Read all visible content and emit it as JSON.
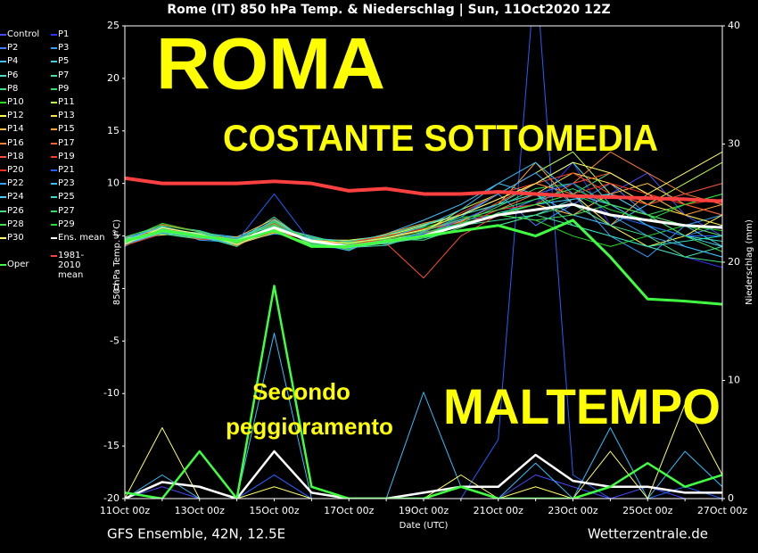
{
  "chart_data": {
    "type": "line",
    "title": "Rome  (IT)  850 hPa Temp. & Niederschlag | Sun, 11Oct2020 12Z",
    "x_label": "Date (UTC)",
    "y_label": "850 hPa Temp. (°C)",
    "y2_label": "Niederschlag (mm)",
    "source_left": "GFS Ensemble, 42N, 12.5E",
    "source_right": "Wetterzentrale.de",
    "annotations": {
      "title": "ROMA",
      "subtitle": "COSTANTE SOTTOMEDIA",
      "note": [
        "Secondo",
        "peggioramento"
      ],
      "headline": "MALTEMPO"
    },
    "x": [
      "11Oct 00z",
      null,
      "13Oct 00z",
      null,
      "15Oct 00z",
      null,
      "17Oct 00z",
      null,
      "19Oct 00z",
      null,
      "21Oct 00z",
      null,
      "23Oct 00z",
      null,
      "25Oct 00z",
      null,
      "27Oct 00z"
    ],
    "ylim": [
      -20,
      25
    ],
    "yticks": [
      -20,
      -15,
      -10,
      -5,
      0,
      5,
      10,
      15,
      20,
      25
    ],
    "y2lim": [
      0,
      40
    ],
    "y2ticks": [
      0,
      10,
      20,
      30,
      40
    ],
    "series": [
      {
        "name": "Control",
        "color": "#4848ff",
        "values": [
          4.5,
          5.8,
          5.2,
          4.3,
          6,
          4.2,
          4,
          4.8,
          5.5,
          6.5,
          8,
          9,
          7,
          9,
          11,
          7,
          5
        ],
        "precip": [
          0,
          1,
          0,
          0,
          2,
          0,
          0,
          0,
          0,
          1,
          0,
          2,
          1,
          0,
          1,
          0,
          0
        ],
        "axis": "y2"
      },
      {
        "name": "P1",
        "color": "#3030ff",
        "values": [
          4.2,
          5.5,
          4.8,
          4.6,
          5.5,
          4.6,
          4.2,
          4.6,
          5.2,
          6,
          7.5,
          8,
          12,
          6,
          4,
          3,
          2
        ]
      },
      {
        "name": "P2",
        "color": "#4080ff",
        "values": [
          4.8,
          5.3,
          5.1,
          4.2,
          6.5,
          4,
          3.8,
          5,
          6,
          7,
          9,
          6,
          8,
          10,
          7,
          5,
          6
        ]
      },
      {
        "name": "P3",
        "color": "#30a0ff",
        "values": [
          4,
          5.9,
          4.6,
          4.4,
          5.2,
          4.8,
          4.5,
          4.2,
          5,
          6.5,
          7,
          8.5,
          9,
          5,
          3,
          6,
          7
        ]
      },
      {
        "name": "P4",
        "color": "#40c0ff",
        "values": [
          4.6,
          5.1,
          5.3,
          4.9,
          6.2,
          4.4,
          3.6,
          5.2,
          6.5,
          8,
          10,
          9,
          7,
          6,
          8,
          9,
          10
        ]
      },
      {
        "name": "P5",
        "color": "#40d0e0",
        "values": [
          4.3,
          5.7,
          4.9,
          4.1,
          5.9,
          5,
          4.1,
          4.4,
          4.8,
          5.5,
          6,
          7,
          8.5,
          9,
          7,
          6,
          4
        ]
      },
      {
        "name": "P6",
        "color": "#40e0c0",
        "values": [
          4.7,
          6,
          5.5,
          4.5,
          6.8,
          4.1,
          4.3,
          4.9,
          5.5,
          7,
          8,
          10,
          12,
          8,
          6,
          5,
          4.5
        ]
      },
      {
        "name": "P7",
        "color": "#40e0a0",
        "values": [
          4.4,
          5.2,
          4.7,
          4.8,
          5.4,
          4.7,
          3.9,
          4.1,
          5.3,
          6,
          6.5,
          7,
          6,
          5,
          4,
          3,
          4
        ]
      },
      {
        "name": "P8",
        "color": "#40e080",
        "values": [
          4.9,
          5.6,
          5,
          4,
          6.1,
          4.3,
          4.4,
          4.7,
          4.6,
          5.8,
          7.2,
          8,
          9,
          11,
          9,
          7,
          6
        ]
      },
      {
        "name": "P9",
        "color": "#30e060",
        "values": [
          4.1,
          5.4,
          5.2,
          4.7,
          5.7,
          4.9,
          4,
          4.3,
          5.1,
          6.2,
          7.8,
          9.5,
          10,
          8,
          7,
          8,
          9
        ]
      },
      {
        "name": "P10",
        "color": "#20e020",
        "values": [
          4.6,
          6.2,
          5.4,
          4.3,
          6.4,
          4.5,
          3.7,
          5.1,
          5.8,
          6.8,
          7,
          6.5,
          5,
          4,
          5,
          6,
          5.5
        ]
      },
      {
        "name": "P11",
        "color": "#c0ff40",
        "values": [
          4.3,
          5.5,
          4.8,
          4.6,
          5.5,
          4.2,
          4.2,
          4.5,
          5.4,
          7.5,
          9,
          11,
          13,
          9,
          8,
          10,
          12
        ]
      },
      {
        "name": "P12",
        "color": "#ffff40",
        "values": [
          4.5,
          5.8,
          5,
          4.4,
          6,
          4.6,
          4.6,
          5,
          6,
          7,
          8.5,
          10,
          9,
          6,
          4,
          5,
          7
        ]
      },
      {
        "name": "P13",
        "color": "#ffe040",
        "values": [
          4.8,
          5.1,
          5.3,
          4.2,
          5.3,
          4.8,
          4,
          4.8,
          5.5,
          6.4,
          8,
          9,
          11,
          10,
          8,
          7,
          6
        ]
      },
      {
        "name": "P14",
        "color": "#ffc040",
        "values": [
          4.2,
          5.9,
          4.9,
          4.9,
          6.6,
          4.3,
          3.8,
          4.4,
          5,
          6,
          7,
          8,
          7,
          9,
          10,
          8,
          7
        ]
      },
      {
        "name": "P15",
        "color": "#ffa030",
        "values": [
          4.7,
          5.3,
          5.1,
          4.5,
          5.8,
          4.4,
          4.3,
          5.2,
          6.2,
          7,
          8,
          12,
          8,
          6,
          9,
          7,
          8
        ]
      },
      {
        "name": "P16",
        "color": "#ff8030",
        "values": [
          4.4,
          5.7,
          5.2,
          4.1,
          5.6,
          4.7,
          4.1,
          4.6,
          5.1,
          6.6,
          7.5,
          9,
          10,
          13,
          11,
          9,
          8
        ]
      },
      {
        "name": "P17",
        "color": "#ff6030",
        "values": [
          4.6,
          5.4,
          4.7,
          4.6,
          6.3,
          4.2,
          4.5,
          4.9,
          5.6,
          6.3,
          8.2,
          10,
          9,
          8,
          7,
          6,
          5
        ]
      },
      {
        "name": "P18",
        "color": "#ff5030",
        "values": [
          4.3,
          6.1,
          5.4,
          4.4,
          5.9,
          4.9,
          3.9,
          4.3,
          1,
          5,
          7,
          8,
          10,
          11,
          9,
          8,
          7
        ]
      },
      {
        "name": "P19",
        "color": "#ff4020",
        "values": [
          4.9,
          5.5,
          5,
          4.7,
          6.2,
          4.5,
          4.2,
          4.7,
          5.3,
          7.2,
          9,
          10,
          11,
          9,
          8,
          9,
          10
        ]
      },
      {
        "name": "P20",
        "color": "#ff3020",
        "values": [
          4.1,
          5.2,
          5.3,
          4.3,
          5.4,
          4.6,
          4.4,
          5,
          5.7,
          6,
          7.5,
          8,
          9,
          10,
          9,
          8,
          8.5
        ]
      },
      {
        "name": "P21",
        "color": "#2060ff",
        "values": [
          4.5,
          5.6,
          4.8,
          4.5,
          9,
          4.3,
          4,
          4.5,
          5.2,
          6.5,
          8,
          9,
          10,
          7,
          6,
          5,
          5
        ],
        "precip": [
          0,
          0,
          0,
          0,
          2,
          0,
          0,
          0,
          0,
          0,
          5,
          45,
          2,
          0,
          0,
          1,
          0
        ],
        "axis": "y2"
      },
      {
        "name": "P22",
        "color": "#30a0ff",
        "values": [
          4.8,
          5.8,
          5.2,
          4.8,
          6,
          4.8,
          3.8,
          4.4,
          5.4,
          6.8,
          9,
          11,
          8,
          7,
          5,
          4,
          3
        ]
      },
      {
        "name": "P23",
        "color": "#30c0ff",
        "values": [
          4.2,
          5.3,
          4.9,
          4.2,
          5.5,
          4.1,
          4.3,
          4.8,
          5.9,
          7.5,
          10,
          12,
          9,
          8,
          6,
          4,
          3
        ],
        "precip": [
          0,
          2,
          0,
          0,
          14,
          0,
          0,
          0,
          9,
          1,
          0,
          3,
          0,
          6,
          0,
          4,
          1
        ],
        "axis": "y2"
      },
      {
        "name": "P24",
        "color": "#40d0ff",
        "values": [
          4.6,
          5.9,
          5.1,
          4.6,
          6.5,
          4.4,
          4.1,
          4.6,
          5,
          6.2,
          7,
          8,
          8.5,
          9,
          7,
          5,
          4
        ]
      },
      {
        "name": "P25",
        "color": "#30e0c0",
        "values": [
          4.4,
          5.5,
          5.3,
          4.4,
          5.7,
          4.7,
          4.5,
          5.1,
          6.1,
          7,
          8,
          9,
          6,
          5,
          4,
          4.5,
          5
        ]
      },
      {
        "name": "P26",
        "color": "#40e080",
        "values": [
          4.7,
          5.2,
          4.8,
          4.7,
          6.1,
          4.2,
          3.9,
          4.3,
          4.8,
          5.5,
          6,
          7,
          8,
          6,
          5,
          3,
          2.5
        ]
      },
      {
        "name": "P27",
        "color": "#30e060",
        "values": [
          4.3,
          5.7,
          5,
          4.3,
          5.8,
          4.9,
          4.2,
          4.9,
          5.5,
          6.6,
          7.5,
          8.5,
          9.5,
          8,
          7,
          6,
          5
        ]
      },
      {
        "name": "P28",
        "color": "#40e050",
        "values": [
          4.9,
          6,
          5.4,
          4.6,
          6.3,
          4.5,
          4.4,
          4.7,
          5.3,
          6.2,
          7,
          6.5,
          7,
          8,
          7,
          5,
          3.5
        ]
      },
      {
        "name": "P29",
        "color": "#20e030",
        "values": [
          4.5,
          5.4,
          4.9,
          4.5,
          6,
          4.3,
          4,
          4.5,
          5,
          6,
          7,
          8,
          9,
          7.5,
          6.5,
          8,
          9
        ]
      },
      {
        "name": "P30",
        "color": "#ffff60",
        "values": [
          4.2,
          5.8,
          5.2,
          4.2,
          5.6,
          4.6,
          4.3,
          4.8,
          5.6,
          7,
          8.5,
          10,
          12,
          11,
          9,
          11,
          13
        ],
        "precip": [
          0,
          6,
          0,
          0,
          1,
          0,
          0,
          0,
          0,
          2,
          0,
          1,
          0,
          4,
          0,
          8,
          2
        ],
        "axis": "y2"
      },
      {
        "name": "Ens. mean",
        "color": "#ffffff",
        "values": [
          4.5,
          5.5,
          5,
          4.5,
          5.8,
          4.5,
          4,
          4.5,
          5,
          6,
          7,
          7.5,
          8,
          7,
          6.5,
          6,
          5.8
        ],
        "precip": [
          0,
          1.4,
          1,
          0,
          4,
          0.5,
          0,
          0,
          0.5,
          1,
          1,
          3.7,
          1.5,
          1,
          1,
          0.5,
          0.5
        ],
        "axis": "y2"
      },
      {
        "name": "Oper",
        "color": "#40ff40",
        "values": [
          4.5,
          5.5,
          5,
          4.5,
          5.5,
          4,
          4,
          4.5,
          5,
          5.5,
          6,
          5,
          6.5,
          3,
          -1,
          -1.2,
          -1.5
        ],
        "precip": [
          0.5,
          0,
          4,
          0,
          18,
          1,
          0,
          0,
          0,
          1,
          0,
          0,
          0,
          1,
          3,
          1,
          2
        ],
        "axis": "y2"
      },
      {
        "name": "1981-2010 mean",
        "color": "#ff4040",
        "values": [
          10.5,
          10,
          10,
          10,
          10.2,
          10,
          9.3,
          9.5,
          9,
          9,
          9.2,
          9,
          8.8,
          8.7,
          8.6,
          8.5,
          8.3
        ]
      }
    ]
  }
}
